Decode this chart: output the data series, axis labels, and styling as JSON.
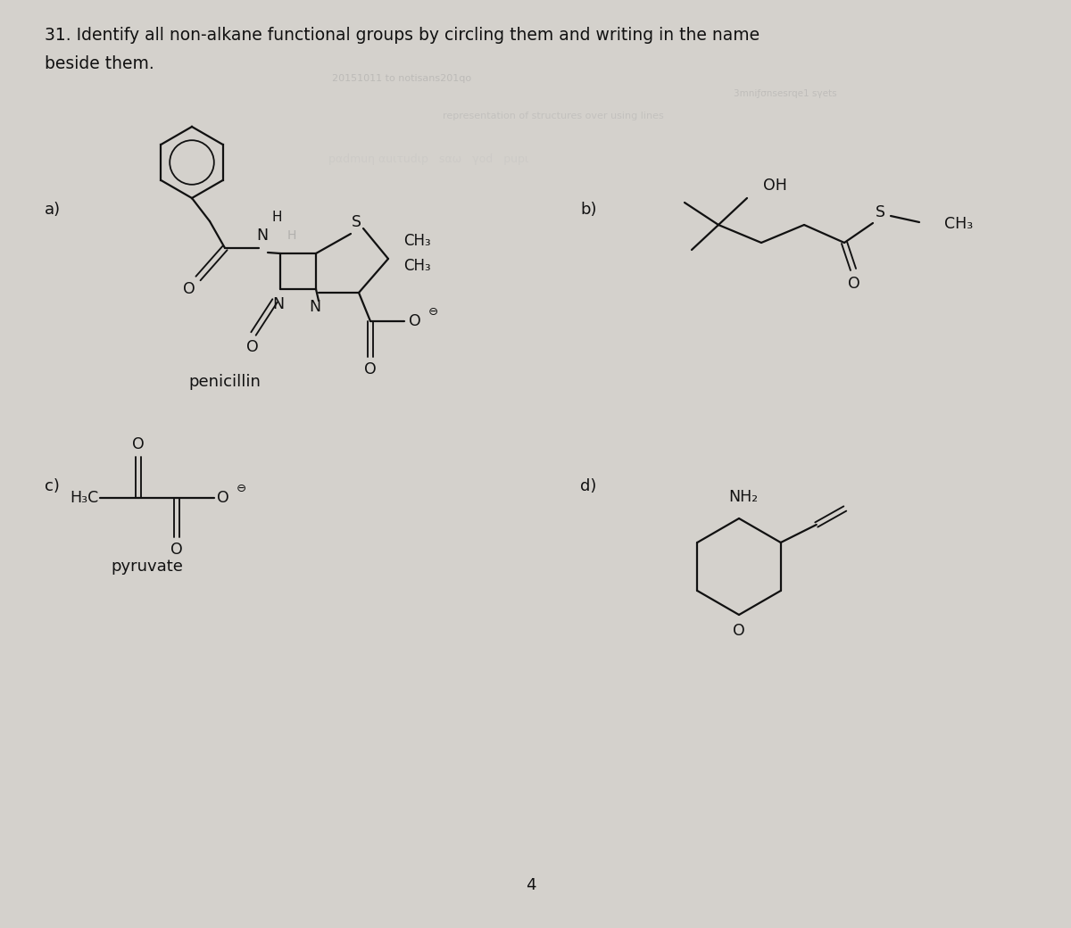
{
  "title_line1": "31. Identify all non-alkane functional groups by circling them and writing in the name",
  "title_line2": "beside them.",
  "bg_color": "#d4d1cc",
  "text_color": "#111111",
  "label_a": "a)",
  "label_b": "b)",
  "label_c": "c)",
  "label_d": "d)",
  "penicillin_label": "penicillin",
  "pyruvate_label": "pyruvate",
  "page_number": "4",
  "font_size_title": 13.5,
  "font_size_labels": 13,
  "font_size_chem": 12.5,
  "font_size_small": 10
}
